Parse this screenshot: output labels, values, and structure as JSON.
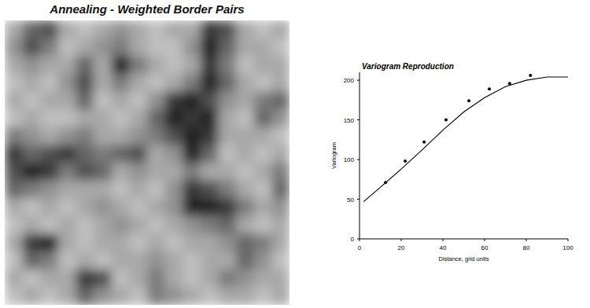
{
  "chart_data": [
    {
      "type": "heatmap",
      "title": "Annealing - Weighted Border Pairs",
      "tick_labels": false,
      "zlim": [
        0,
        1
      ],
      "cells": [
        [
          0.3,
          0.6,
          0.7,
          0.3,
          0.2,
          0.3,
          0.4,
          0.3,
          0.2,
          0.3,
          0.3,
          0.8,
          0.7,
          0.3,
          0.2,
          0.3
        ],
        [
          0.4,
          0.7,
          0.5,
          0.2,
          0.3,
          0.4,
          0.5,
          0.3,
          0.2,
          0.2,
          0.4,
          0.9,
          0.6,
          0.3,
          0.3,
          0.2
        ],
        [
          0.3,
          0.4,
          0.3,
          0.3,
          0.6,
          0.3,
          0.9,
          0.5,
          0.3,
          0.2,
          0.3,
          0.8,
          0.5,
          0.2,
          0.3,
          0.3
        ],
        [
          0.2,
          0.3,
          0.2,
          0.4,
          0.7,
          0.3,
          0.5,
          0.3,
          0.2,
          0.3,
          0.5,
          0.9,
          0.6,
          0.3,
          0.2,
          0.3
        ],
        [
          0.3,
          0.2,
          0.3,
          0.3,
          0.6,
          0.2,
          0.3,
          0.2,
          0.4,
          0.8,
          0.9,
          0.7,
          0.4,
          0.3,
          0.5,
          0.6
        ],
        [
          0.2,
          0.3,
          0.2,
          0.2,
          0.3,
          0.3,
          0.2,
          0.3,
          0.6,
          0.9,
          0.8,
          0.9,
          0.3,
          0.2,
          0.6,
          0.4
        ],
        [
          0.5,
          0.4,
          0.3,
          0.4,
          0.5,
          0.3,
          0.3,
          0.4,
          0.5,
          0.7,
          0.9,
          0.8,
          0.3,
          0.3,
          0.3,
          0.2
        ],
        [
          0.8,
          0.6,
          0.7,
          0.8,
          0.6,
          0.5,
          0.6,
          0.7,
          0.3,
          0.4,
          0.9,
          0.6,
          0.2,
          0.3,
          0.2,
          0.3
        ],
        [
          0.7,
          0.9,
          0.8,
          0.5,
          0.7,
          0.6,
          0.3,
          0.4,
          0.3,
          0.3,
          0.5,
          0.3,
          0.3,
          0.2,
          0.3,
          0.5
        ],
        [
          0.6,
          0.5,
          0.4,
          0.3,
          0.3,
          0.3,
          0.2,
          0.3,
          0.2,
          0.4,
          0.8,
          0.7,
          0.5,
          0.3,
          0.2,
          0.6
        ],
        [
          0.3,
          0.2,
          0.3,
          0.2,
          0.3,
          0.4,
          0.3,
          0.2,
          0.3,
          0.4,
          0.9,
          0.9,
          0.8,
          0.5,
          0.3,
          0.4
        ],
        [
          0.2,
          0.3,
          0.2,
          0.3,
          0.2,
          0.3,
          0.4,
          0.3,
          0.2,
          0.3,
          0.4,
          0.5,
          0.6,
          0.3,
          0.2,
          0.3
        ],
        [
          0.3,
          0.8,
          0.9,
          0.3,
          0.2,
          0.3,
          0.3,
          0.2,
          0.3,
          0.2,
          0.3,
          0.3,
          0.4,
          0.6,
          0.5,
          0.3
        ],
        [
          0.2,
          0.6,
          0.5,
          0.2,
          0.3,
          0.2,
          0.3,
          0.3,
          0.4,
          0.3,
          0.2,
          0.3,
          0.3,
          0.6,
          0.4,
          0.2
        ],
        [
          0.3,
          0.2,
          0.3,
          0.3,
          0.8,
          0.7,
          0.2,
          0.3,
          0.5,
          0.3,
          0.2,
          0.3,
          0.5,
          0.4,
          0.3,
          0.3
        ],
        [
          0.2,
          0.3,
          0.2,
          0.3,
          0.6,
          0.4,
          0.3,
          0.2,
          0.5,
          0.4,
          0.3,
          0.2,
          0.3,
          0.3,
          0.2,
          0.3
        ]
      ]
    },
    {
      "type": "line",
      "title": "Variogram Reproduction",
      "x_label": "Distance, grid units",
      "y_label": "Variogram",
      "xlim": [
        0,
        100
      ],
      "ylim": [
        0,
        210
      ],
      "xticks": [
        0,
        20,
        40,
        60,
        80,
        100
      ],
      "yticks": [
        0,
        50,
        100,
        150,
        200
      ],
      "grid": false,
      "series": [
        {
          "type": "scatter",
          "marker": "circle",
          "color": "#000000",
          "x": [
            12.5,
            21.9,
            31,
            41.5,
            52.5,
            62.3,
            72,
            82
          ],
          "values": [
            71,
            98,
            122,
            150,
            174,
            189,
            196,
            206
          ]
        },
        {
          "type": "line",
          "line_style": "solid",
          "color": "#000000",
          "x": [
            2,
            10,
            20,
            30,
            40,
            50,
            60,
            70,
            80,
            90,
            100
          ],
          "values": [
            47,
            65,
            88,
            112,
            137,
            160,
            178,
            192,
            200,
            204,
            204
          ]
        }
      ]
    }
  ]
}
